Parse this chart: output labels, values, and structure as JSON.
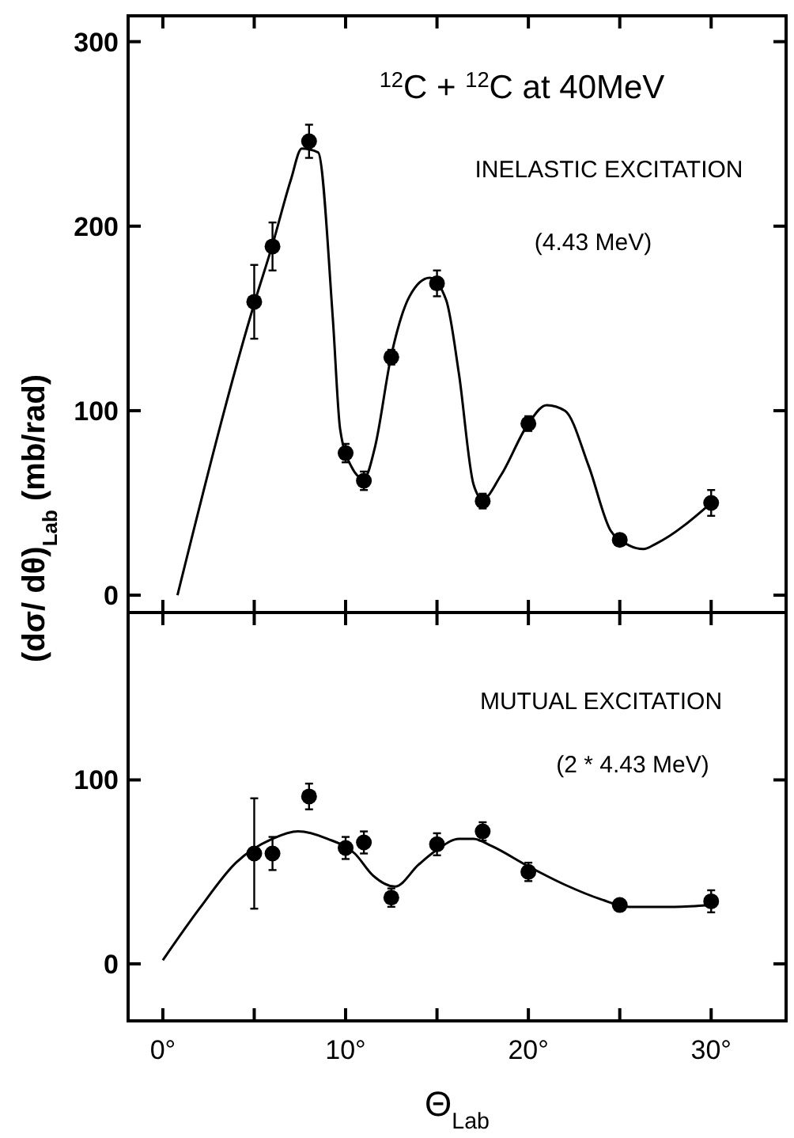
{
  "chart_data": [
    {
      "type": "scatter",
      "ylabel": "(dσ/ dθ)$_{Lab}$  (mb/rad)",
      "annotations": [
        "$^{12}$C + $^{12}$C  at  40MeV",
        "INELASTIC EXCITATION",
        "(4.43 MeV)"
      ],
      "xlim": [
        -1.9,
        34.1
      ],
      "ylim": [
        -9.4,
        314
      ],
      "xticks": [
        {
          "value": 0,
          "label": null
        },
        {
          "value": 5,
          "label": null
        },
        {
          "value": 10,
          "label": null
        },
        {
          "value": 15,
          "label": null
        },
        {
          "value": 20,
          "label": null
        },
        {
          "value": 25,
          "label": null
        },
        {
          "value": 30,
          "label": null
        }
      ],
      "yticks": [
        0,
        100,
        200,
        300
      ],
      "tick_labels": "y",
      "series": [
        {
          "type": "scatter",
          "color": "#000000",
          "marker": "circle",
          "x": [
            5,
            6,
            8,
            10,
            11,
            12.5,
            15,
            17.5,
            20,
            25,
            30
          ],
          "values": [
            159,
            189,
            246,
            77,
            62,
            129,
            169,
            51,
            93,
            30,
            50
          ],
          "errors": [
            20,
            13,
            9,
            5,
            5,
            4,
            7,
            4,
            4,
            3,
            7
          ]
        },
        {
          "type": "line",
          "color": "#000000",
          "marker": "none",
          "line_style": "solid",
          "x": [
            0.8,
            5,
            6,
            7,
            7.6,
            8.5,
            9.3,
            9.7,
            10.3,
            11,
            11.6,
            12.5,
            13.5,
            14.6,
            15.5,
            16.2,
            17,
            17.5,
            18.5,
            20,
            21,
            22,
            23.3,
            24.5,
            25.5,
            26.3,
            27,
            30
          ],
          "values": [
            0,
            158,
            190,
            225,
            242,
            240,
            150,
            90,
            70,
            63,
            80,
            130,
            162,
            172,
            160,
            120,
            60,
            52,
            65,
            93,
            103,
            100,
            70,
            35,
            27,
            25,
            28,
            50
          ]
        }
      ]
    },
    {
      "type": "scatter",
      "xlabel": "Θ$_{Lab}$",
      "annotations": [
        "MUTUAL EXCITATION",
        "(2 * 4.43 MeV)"
      ],
      "xlim": [
        -1.9,
        34.1
      ],
      "ylim": [
        -31,
        191
      ],
      "xticks": [
        {
          "value": 0,
          "label": "0°"
        },
        {
          "value": 5,
          "label": null
        },
        {
          "value": 10,
          "label": "10°"
        },
        {
          "value": 15,
          "label": null
        },
        {
          "value": 20,
          "label": "20°"
        },
        {
          "value": 25,
          "label": null
        },
        {
          "value": 30,
          "label": "30°"
        }
      ],
      "yticks": [
        0,
        100
      ],
      "series": [
        {
          "type": "scatter",
          "color": "#000000",
          "marker": "circle",
          "x": [
            5,
            6,
            8,
            10,
            11,
            12.5,
            15,
            17.5,
            20,
            25,
            30
          ],
          "values": [
            60,
            60,
            91,
            63,
            66,
            36,
            65,
            72,
            50,
            32,
            34
          ],
          "errors": [
            30,
            9,
            7,
            6,
            6,
            5,
            6,
            5,
            5,
            3,
            6
          ]
        },
        {
          "type": "line",
          "color": "#000000",
          "marker": "none",
          "line_style": "solid",
          "x": [
            0,
            2,
            4,
            6,
            7.4,
            9,
            10.5,
            11.5,
            12.7,
            14,
            15,
            16.2,
            17,
            18,
            20,
            22,
            24,
            25.5,
            28,
            30
          ],
          "values": [
            2,
            30,
            55,
            68,
            72,
            68,
            60,
            48,
            42,
            54,
            62,
            68,
            68,
            64,
            53,
            43,
            35,
            31,
            31,
            32
          ]
        }
      ]
    }
  ]
}
